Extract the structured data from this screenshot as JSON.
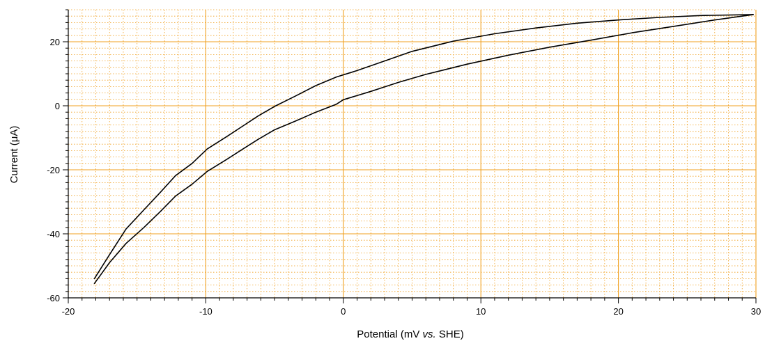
{
  "chart_data": {
    "type": "line",
    "title": "",
    "xlabel_parts": {
      "pre": "Potential (mV ",
      "ital": "vs.",
      "post": " SHE)"
    },
    "ylabel_parts": {
      "pre": "Current (",
      "greek": "μ",
      "post": "A)"
    },
    "xlim": [
      -20,
      30
    ],
    "ylim": [
      -60,
      30
    ],
    "x_ticks": [
      "-20",
      "-10",
      "0",
      "10",
      "20",
      "30"
    ],
    "y_ticks": [
      "-60",
      "-40",
      "-20",
      "0",
      "20"
    ],
    "grid": true,
    "grid_color": "#f0a020",
    "line_color": "#000000",
    "series": [
      {
        "x": [
          -18.1,
          -17.0,
          -15.8,
          -14.5,
          -13.3,
          -12.2,
          -11.0,
          -9.9,
          -8.5,
          -7.3,
          -6.2,
          -5.0,
          -3.5,
          -2.0,
          -0.5,
          1.0,
          3.0,
          5.0,
          8.0,
          11.0,
          14.0,
          17.0,
          20.0,
          23.0,
          26.0,
          29.8
        ],
        "y": [
          -54.0,
          -46.5,
          -38.5,
          -32.5,
          -27.0,
          -21.8,
          -18.0,
          -13.5,
          -9.7,
          -6.3,
          -3.2,
          -0.2,
          3.0,
          6.3,
          9.0,
          11.0,
          14.0,
          17.0,
          20.2,
          22.5,
          24.3,
          25.8,
          26.8,
          27.6,
          28.2,
          28.5
        ]
      },
      {
        "x": [
          -18.1,
          -17.0,
          -15.8,
          -14.5,
          -13.3,
          -12.2,
          -11.0,
          -9.9,
          -8.5,
          -7.3,
          -6.2,
          -5.0,
          -3.5,
          -2.0,
          -0.5,
          0.0,
          2.0,
          4.0,
          6.0,
          9.0,
          12.0,
          15.0,
          18.0,
          21.0,
          24.0,
          27.0,
          29.8
        ],
        "y": [
          -55.5,
          -49.0,
          -43.0,
          -38.0,
          -33.0,
          -28.2,
          -24.5,
          -20.5,
          -16.8,
          -13.5,
          -10.5,
          -7.5,
          -4.8,
          -2.0,
          0.5,
          1.9,
          4.5,
          7.3,
          9.8,
          13.0,
          15.8,
          18.3,
          20.5,
          22.8,
          24.8,
          26.8,
          28.5
        ]
      }
    ]
  }
}
